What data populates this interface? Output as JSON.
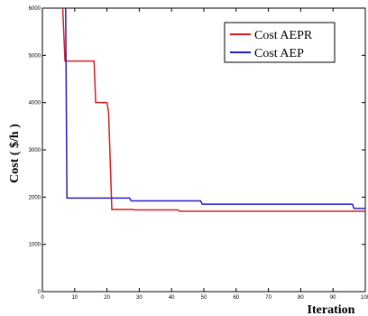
{
  "chart_data": {
    "type": "line",
    "xlabel": "Iteration",
    "ylabel": "Cost ( $/h )",
    "xlim": [
      0,
      100
    ],
    "ylim": [
      0,
      6000
    ],
    "x_ticks": [
      "0",
      "10",
      "20",
      "30",
      "40",
      "50",
      "60",
      "70",
      "80",
      "90",
      "100"
    ],
    "y_ticks": [
      "0",
      "1000",
      "2000",
      "3000",
      "4000",
      "5000",
      "6000"
    ],
    "grid": false,
    "legend_position": "top-right",
    "series": [
      {
        "name": "Cost AEPR",
        "color": "#d42020",
        "x": [
          5,
          6.3,
          7,
          16,
          16.5,
          20,
          20.5,
          21.5,
          28,
          28.5,
          42,
          42.5,
          100
        ],
        "y": [
          9000,
          6000,
          4880,
          4880,
          4000,
          4000,
          3800,
          1740,
          1740,
          1730,
          1730,
          1700,
          1700
        ]
      },
      {
        "name": "Cost AEP",
        "color": "#2020c8",
        "x": [
          5,
          7.2,
          7.6,
          27,
          27.5,
          49,
          49.5,
          96,
          96.5,
          100
        ],
        "y": [
          9000,
          6000,
          1980,
          1980,
          1920,
          1920,
          1850,
          1850,
          1760,
          1760
        ]
      }
    ]
  }
}
